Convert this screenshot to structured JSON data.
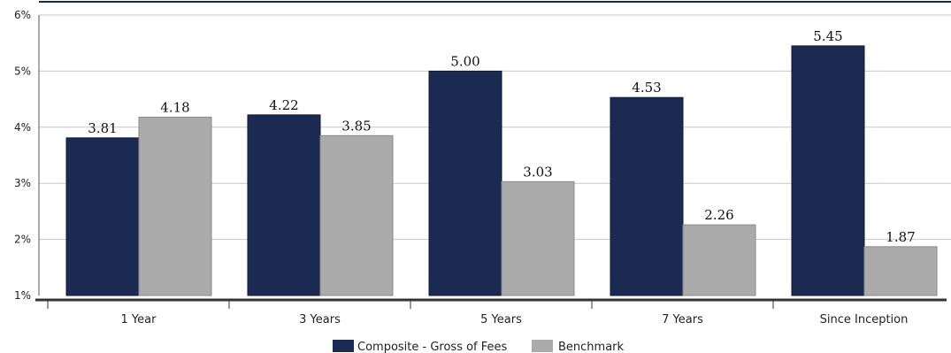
{
  "chart_data": {
    "type": "bar",
    "categories": [
      "1 Year",
      "3 Years",
      "5 Years",
      "7 Years",
      "Since Inception"
    ],
    "series": [
      {
        "name": "Composite - Gross of Fees",
        "color": "#1b2a52",
        "values": [
          3.81,
          4.22,
          5.0,
          4.53,
          5.45
        ]
      },
      {
        "name": "Benchmark",
        "color": "#ababab",
        "values": [
          4.18,
          3.85,
          3.03,
          2.26,
          1.87
        ]
      }
    ],
    "data_labels": [
      [
        "3.81",
        "4.22",
        "5.00",
        "4.53",
        "5.45"
      ],
      [
        "4.18",
        "3.85",
        "3.03",
        "2.26",
        "1.87"
      ]
    ],
    "ylim": [
      1,
      6
    ],
    "yticks": [
      1,
      2,
      3,
      4,
      5,
      6
    ],
    "ytick_labels": [
      "1%",
      "2%",
      "3%",
      "4%",
      "5%",
      "6%"
    ],
    "grid": true,
    "legend_position": "bottom-center",
    "title": "",
    "xlabel": "",
    "ylabel": ""
  }
}
